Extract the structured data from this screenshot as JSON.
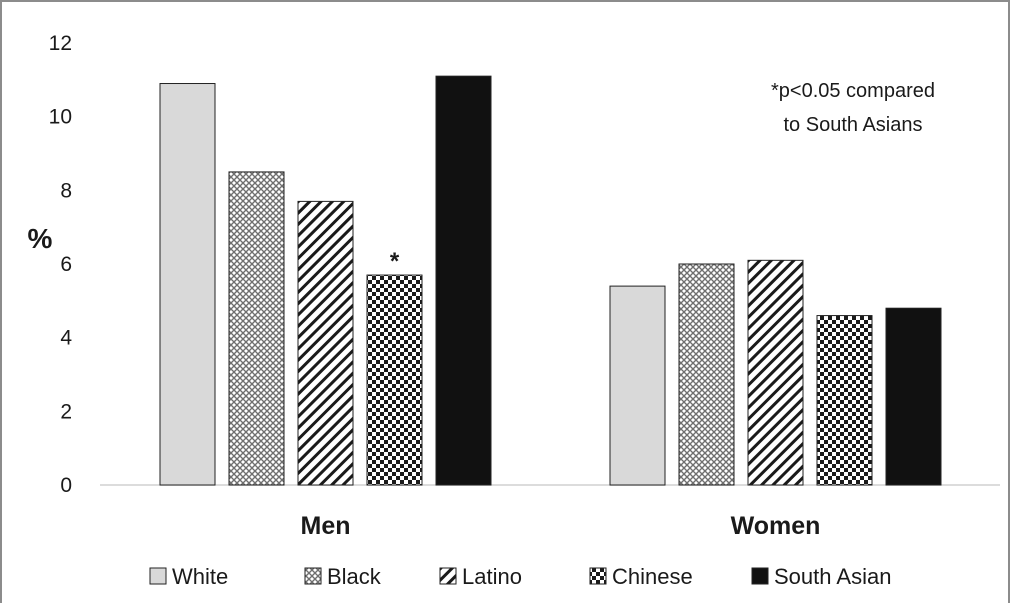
{
  "chart_data": {
    "type": "bar",
    "categories": [
      "Men",
      "Women"
    ],
    "series": [
      {
        "name": "White",
        "values": [
          10.9,
          5.4
        ],
        "fill": "#d9d9d9",
        "pattern": "solid-light"
      },
      {
        "name": "Black",
        "values": [
          8.5,
          6.0
        ],
        "fill": "#7a7a7a",
        "pattern": "fine-dots"
      },
      {
        "name": "Latino",
        "values": [
          7.7,
          6.1
        ],
        "fill": "#000000",
        "pattern": "diagonal-lines"
      },
      {
        "name": "Chinese",
        "values": [
          5.7,
          4.6
        ],
        "fill": "#000000",
        "pattern": "checker"
      },
      {
        "name": "South Asian",
        "values": [
          11.1,
          4.8
        ],
        "fill": "#111111",
        "pattern": "solid-dark"
      }
    ],
    "ylabel": "%",
    "ylim": [
      0,
      12
    ],
    "yticks": [
      0,
      2,
      4,
      6,
      8,
      10,
      12
    ],
    "grid": false,
    "legend_position": "bottom",
    "significance_marker": {
      "text": "*",
      "category": "Men",
      "series": "Chinese"
    },
    "annotation_lines": [
      "*p<0.05 compared",
      "to South Asians"
    ]
  }
}
